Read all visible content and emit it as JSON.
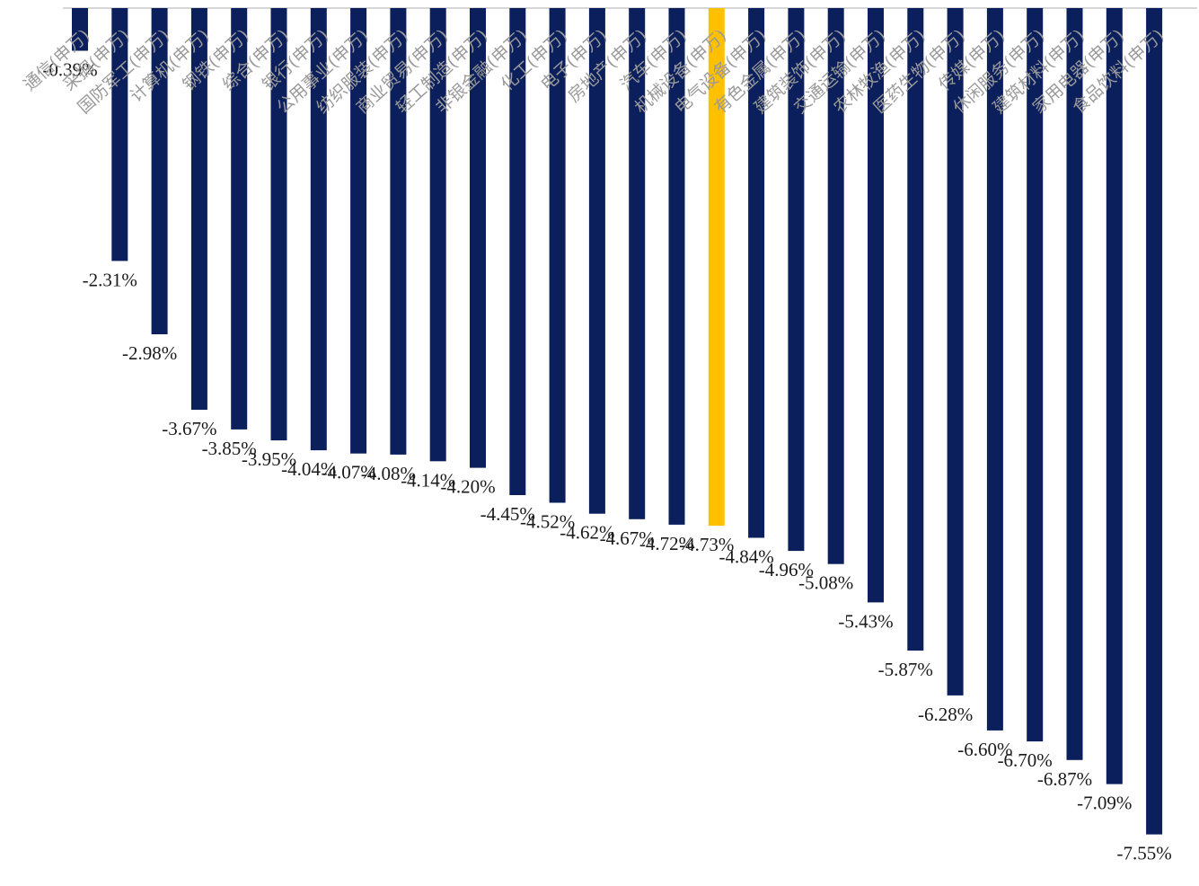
{
  "chart_data": {
    "type": "bar",
    "title": "",
    "xlabel": "",
    "ylabel": "",
    "ylim": [
      -7.7,
      0
    ],
    "grid": false,
    "legend": "none",
    "value_suffix": "%",
    "colors": {
      "default": "#0b1f5c",
      "highlight": "#ffc000",
      "axis": "#c8c8c8"
    },
    "highlight_index": 16,
    "categories": [
      "通信(申万)",
      "采掘(申万)",
      "国防军工(申万)",
      "计算机(申万)",
      "钢铁(申万)",
      "综合(申万)",
      "银行(申万)",
      "公用事业(申万)",
      "纺织服装(申万)",
      "商业贸易(申万)",
      "轻工制造(申万)",
      "非银金融(申万)",
      "化工(申万)",
      "电子(申万)",
      "房地产(申万)",
      "汽车(申万)",
      "机械设备(申万)",
      "电气设备(申万)",
      "有色金属(申万)",
      "建筑装饰(申万)",
      "交通运输(申万)",
      "农林牧渔(申万)",
      "医药生物(申万)",
      "传媒(申万)",
      "休闲服务(申万)",
      "建筑材料(申万)",
      "家用电器(申万)",
      "食品饮料(申万)"
    ],
    "values": [
      -0.39,
      -2.31,
      -2.98,
      -3.67,
      -3.85,
      -3.95,
      -4.04,
      -4.07,
      -4.08,
      -4.14,
      -4.2,
      -4.45,
      -4.52,
      -4.62,
      -4.67,
      -4.72,
      -4.73,
      -4.84,
      -4.96,
      -5.08,
      -5.43,
      -5.87,
      -6.28,
      -6.6,
      -6.7,
      -6.87,
      -7.09,
      -7.55
    ],
    "value_labels": [
      "-0.39%",
      "-2.31%",
      "-2.98%",
      "-3.67%",
      "-3.85%",
      "-3.95%",
      "-4.04%",
      "-4.07%",
      "-4.08%",
      "-4.14%",
      "-4.20%",
      "-4.45%",
      "-4.52%",
      "-4.62%",
      "-4.67%",
      "-4.72%",
      "-4.73%",
      "-4.84%",
      "-4.96%",
      "-5.08%",
      "-5.43%",
      "-5.87%",
      "-6.28%",
      "-6.60%",
      "-6.70%",
      "-6.87%",
      "-7.09%",
      "-7.55%"
    ]
  }
}
